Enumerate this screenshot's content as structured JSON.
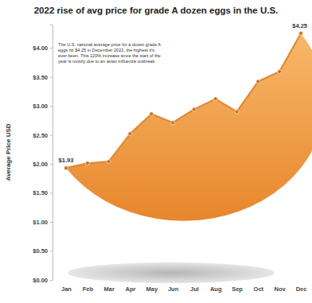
{
  "chart_data": {
    "type": "line",
    "title": "2022 rise of avg price for grade A dozen eggs in the U.S.",
    "y_label": "Average Price USD",
    "annotation": [
      "The U.S. national average price for a dozen grade A",
      "eggs hit $4.25 in December 2022, the highest it's",
      "ever been. This 120% increase since the start of the",
      "year is mostly due to an avian influenza outbreak."
    ],
    "categories": [
      "Jan",
      "Feb",
      "Mar",
      "Apr",
      "May",
      "Jun",
      "Jul",
      "Aug",
      "Sep",
      "Oct",
      "Nov",
      "Dec"
    ],
    "values": [
      1.93,
      2.01,
      2.04,
      2.52,
      2.86,
      2.71,
      2.94,
      3.12,
      2.9,
      3.42,
      3.59,
      4.25
    ],
    "value_labels": [
      "$1.93",
      null,
      null,
      null,
      null,
      null,
      null,
      null,
      null,
      null,
      null,
      "$4.25"
    ],
    "data_labels": true,
    "color": "#e08a35",
    "marker": "circle",
    "grid": false,
    "ylim": [
      0,
      4.4
    ],
    "yticks": [
      {
        "value": 0,
        "label": "$0.00"
      },
      {
        "value": 0.5,
        "label": "$0.50"
      },
      {
        "value": 1,
        "label": "$1.00"
      },
      {
        "value": 1.5,
        "label": "$1.50"
      },
      {
        "value": 2,
        "label": "$2.00"
      },
      {
        "value": 2.5,
        "label": "$2.50"
      },
      {
        "value": 3,
        "label": "$3.00"
      },
      {
        "value": 3.5,
        "label": "$3.50"
      },
      {
        "value": 4,
        "label": "$4.00"
      }
    ]
  }
}
